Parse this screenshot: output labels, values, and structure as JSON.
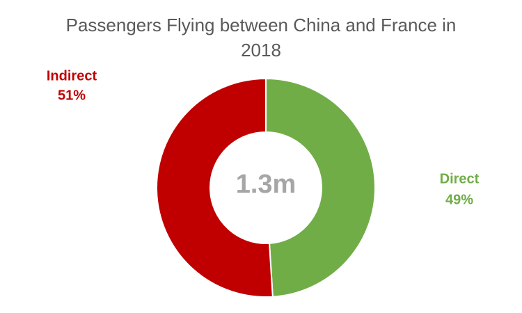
{
  "chart_data": {
    "type": "donut",
    "title": "Passengers Flying between China and France in 2018",
    "center_label": "1.3m",
    "categories": [
      "Direct",
      "Indirect"
    ],
    "values": [
      49,
      51
    ],
    "value_labels": [
      "49%",
      "51%"
    ],
    "colors": [
      "#70ad47",
      "#c00000"
    ]
  }
}
